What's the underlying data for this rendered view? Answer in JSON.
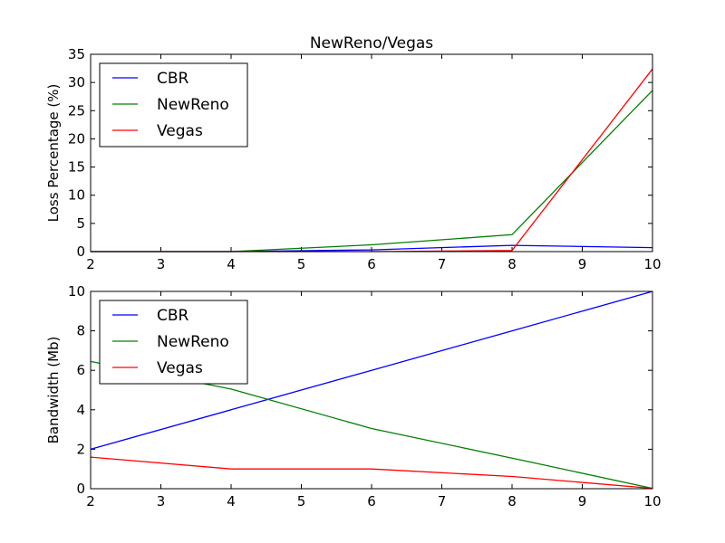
{
  "chart_data": [
    {
      "type": "line",
      "title": "NewReno/Vegas",
      "xlabel": "",
      "ylabel": "Loss Percentage (%)",
      "xlim": [
        2,
        10
      ],
      "ylim": [
        0,
        35
      ],
      "xticks": [
        "2",
        "3",
        "4",
        "5",
        "6",
        "7",
        "8",
        "9",
        "10"
      ],
      "yticks": [
        "0",
        "5",
        "10",
        "15",
        "20",
        "25",
        "30",
        "35"
      ],
      "grid": false,
      "legend": "top-left",
      "x": [
        2,
        4,
        6,
        8,
        10
      ],
      "series": [
        {
          "name": "CBR",
          "color": "#0000ff",
          "values": [
            0,
            0,
            0.3,
            1.1,
            0.7
          ]
        },
        {
          "name": "NewReno",
          "color": "#008000",
          "values": [
            0,
            0,
            1.2,
            3.0,
            28.6
          ]
        },
        {
          "name": "Vegas",
          "color": "#ff0000",
          "values": [
            0,
            0,
            0,
            0.2,
            32.4
          ]
        }
      ]
    },
    {
      "type": "line",
      "title": "",
      "xlabel": "",
      "ylabel": "Bandwidth (Mb)",
      "xlim": [
        2,
        10
      ],
      "ylim": [
        0,
        10
      ],
      "xticks": [
        "2",
        "3",
        "4",
        "5",
        "6",
        "7",
        "8",
        "9",
        "10"
      ],
      "yticks": [
        "0",
        "2",
        "4",
        "6",
        "8",
        "10"
      ],
      "grid": false,
      "legend": "top-left",
      "x": [
        2,
        4,
        6,
        8,
        10
      ],
      "series": [
        {
          "name": "CBR",
          "color": "#0000ff",
          "values": [
            2,
            4,
            6,
            8,
            10
          ]
        },
        {
          "name": "NewReno",
          "color": "#008000",
          "values": [
            6.45,
            5.05,
            3.05,
            1.55,
            0.02
          ]
        },
        {
          "name": "Vegas",
          "color": "#ff0000",
          "values": [
            1.6,
            1.0,
            1.0,
            0.62,
            0.02
          ]
        }
      ]
    }
  ]
}
